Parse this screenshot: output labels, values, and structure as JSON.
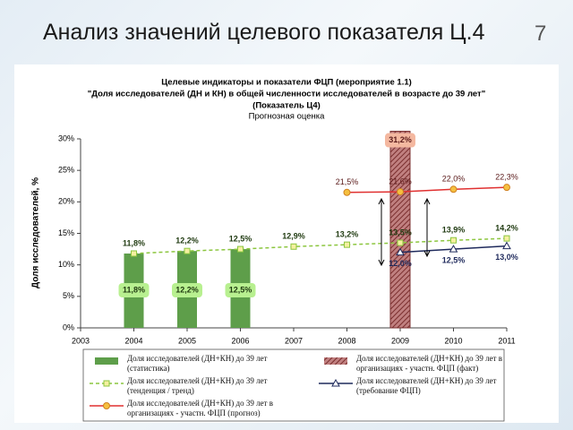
{
  "slide_title": "Анализ значений целевого показателя Ц.4",
  "slide_number": "7",
  "chart_data": {
    "type": "combo",
    "title": "Целевые индикаторы и показатели ФЦП (мероприятие 1.1)",
    "subtitle": "\"Доля исследователей (ДН и КН) в общей численности исследователей в возрасте до 39 лет\"",
    "subtitle2": "(Показатель Ц4)",
    "subtitle3": "Прогнозная оценка",
    "y_label": "Доля исследователей, %",
    "xlim": [
      2003,
      2011
    ],
    "xticks": [
      2003,
      2004,
      2005,
      2006,
      2007,
      2008,
      2009,
      2010,
      2011
    ],
    "ylim": [
      0,
      30
    ],
    "yticks": [
      {
        "value": 0,
        "label": "0%"
      },
      {
        "value": 5,
        "label": "5%"
      },
      {
        "value": 10,
        "label": "10%"
      },
      {
        "value": 15,
        "label": "15%"
      },
      {
        "value": 20,
        "label": "20%"
      },
      {
        "value": 25,
        "label": "25%"
      },
      {
        "value": 30,
        "label": "30%"
      }
    ],
    "grid": false,
    "series": [
      {
        "name": "Доля исследователей (ДН+КН) до 39 лет (статистика)",
        "type": "bar",
        "color": "#5e9e4a",
        "x": [
          2004,
          2005,
          2006
        ],
        "values": [
          11.8,
          12.2,
          12.5
        ],
        "value_labels": [
          "11,8%",
          "12,2%",
          "12,5%"
        ]
      },
      {
        "name": "Доля исследователей (ДН+КН) до 39 лет в организациях - участн. ФЦП (факт)",
        "type": "bar",
        "color": "#9c4a4a",
        "x": [
          2009
        ],
        "values": [
          31.2
        ],
        "value_labels": [
          "31,2%"
        ]
      },
      {
        "name": "Доля исследователей (ДН+КН) до 39 лет (тенденция / тренд)",
        "type": "line",
        "color": "#8cc63f",
        "marker_color": "#f5f0a0",
        "marker": "square",
        "dash": true,
        "x": [
          2004,
          2005,
          2006,
          2007,
          2008,
          2009,
          2010,
          2011
        ],
        "values": [
          11.8,
          12.2,
          12.5,
          12.9,
          13.2,
          13.5,
          13.9,
          14.2
        ],
        "value_labels": [
          "11,8%",
          "12,2%",
          "12,5%",
          "12,9%",
          "13,2%",
          "13,5%",
          "13,9%",
          "14,2%"
        ]
      },
      {
        "name": "Доля исследователей (ДН+КН) до 39 лет (требование ФЦП)",
        "type": "line",
        "color": "#1f2a5c",
        "marker_color": "#ffffff",
        "marker": "triangle",
        "dash": false,
        "x": [
          2009,
          2010,
          2011
        ],
        "values": [
          12.0,
          12.5,
          13.0
        ],
        "value_labels": [
          "12,0%",
          "12,5%",
          "13,0%"
        ]
      },
      {
        "name": "Доля исследователей (ДН+КН) до 39 лет в организациях - участн. ФЦП (прогноз)",
        "type": "line",
        "color": "#e03030",
        "marker_color": "#f5c040",
        "marker": "circle",
        "dash": false,
        "x": [
          2008,
          2009,
          2010,
          2011
        ],
        "values": [
          21.5,
          21.6,
          22.0,
          22.3
        ],
        "value_labels": [
          "21,5%",
          "21,6%",
          "22,0%",
          "22,3%"
        ]
      }
    ]
  }
}
